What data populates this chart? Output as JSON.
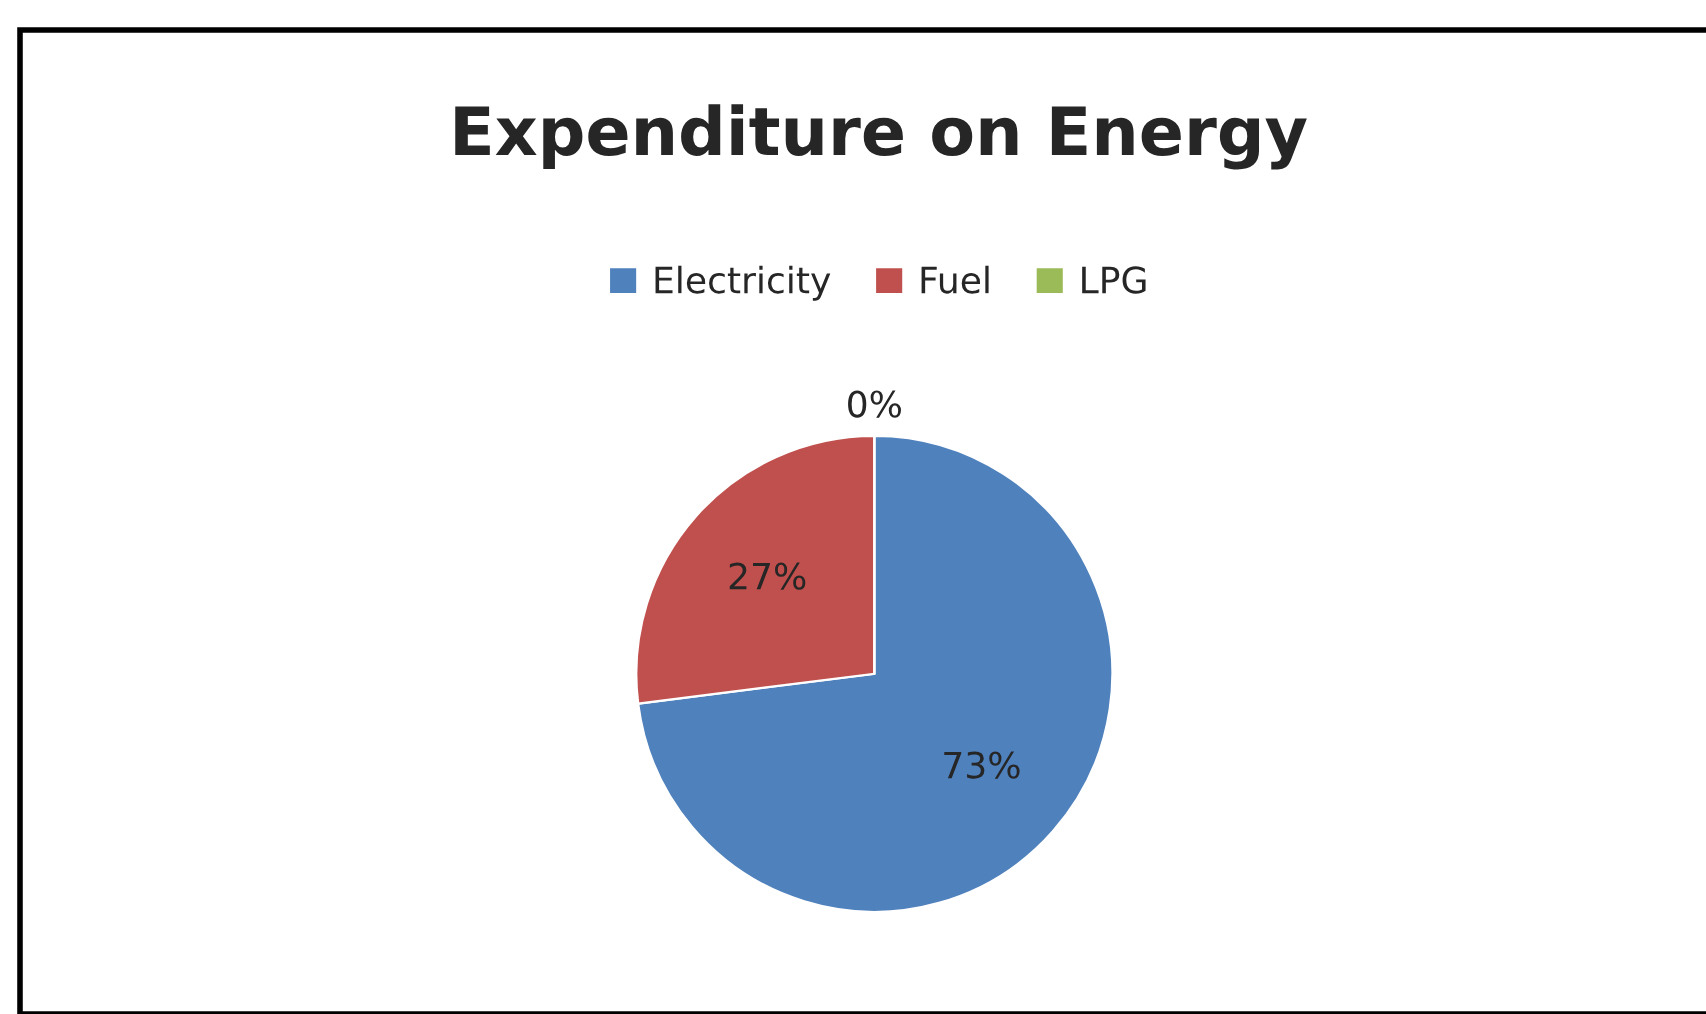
{
  "chart_data": {
    "type": "pie",
    "title": "Expenditure on Energy",
    "categories": [
      "Electricity",
      "Fuel",
      "LPG"
    ],
    "values": [
      73,
      27,
      0
    ],
    "colors": [
      "#4f81bd",
      "#c0504d",
      "#9bbb59"
    ],
    "value_labels": [
      "73%",
      "27%",
      "0%"
    ],
    "legend": "top"
  }
}
